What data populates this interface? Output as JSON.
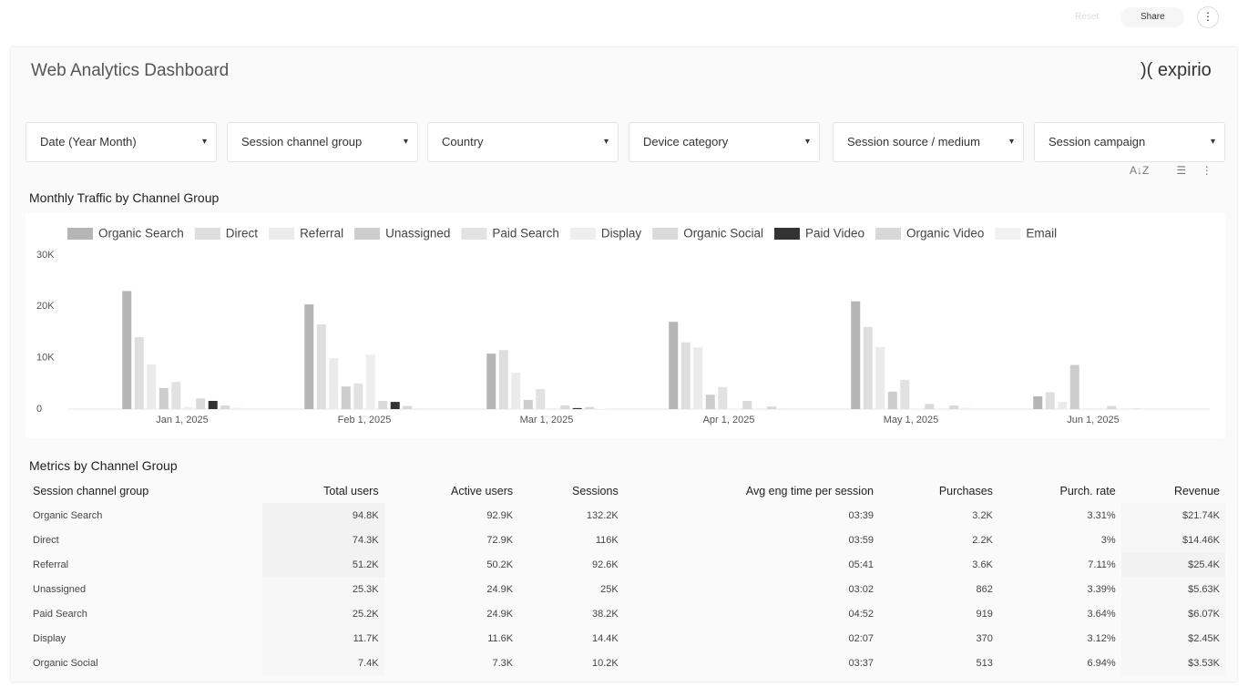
{
  "header": {
    "reset": "Reset",
    "share": "Share",
    "title": "Web Analytics Dashboard",
    "logo": "expirio"
  },
  "filters": [
    "Date (Year Month)",
    "Session channel group",
    "Country",
    "Device category",
    "Session source / medium",
    "Session campaign"
  ],
  "chart_data": {
    "type": "bar",
    "title": "Monthly Traffic by Channel Group",
    "categories": [
      "Jan 1, 2025",
      "Feb 1, 2025",
      "Mar 1, 2025",
      "Apr 1, 2025",
      "May 1, 2025",
      "Jun 1, 2025"
    ],
    "series": [
      {
        "name": "Organic Search",
        "color": "#b5b5b5",
        "values": [
          23000,
          20400,
          10800,
          17000,
          21000,
          2500
        ]
      },
      {
        "name": "Direct",
        "color": "#dedede",
        "values": [
          14000,
          16500,
          11500,
          13000,
          16000,
          3300
        ]
      },
      {
        "name": "Referral",
        "color": "#ebebeb",
        "values": [
          8700,
          9900,
          7100,
          12000,
          12100,
          1400
        ]
      },
      {
        "name": "Unassigned",
        "color": "#cdcdcd",
        "values": [
          4100,
          4400,
          1800,
          2800,
          3400,
          8600
        ]
      },
      {
        "name": "Paid Search",
        "color": "#e2e2e2",
        "values": [
          5300,
          5000,
          3900,
          4300,
          5700,
          100
        ]
      },
      {
        "name": "Display",
        "color": "#eeeeee",
        "values": [
          400,
          10600,
          200,
          100,
          100,
          0
        ]
      },
      {
        "name": "Organic Social",
        "color": "#dadada",
        "values": [
          2100,
          1600,
          700,
          1600,
          1000,
          600
        ]
      },
      {
        "name": "Paid Video",
        "color": "#333333",
        "values": [
          1600,
          1400,
          200,
          0,
          0,
          0
        ]
      },
      {
        "name": "Organic Video",
        "color": "#d8d8d8",
        "values": [
          700,
          600,
          400,
          500,
          700,
          100
        ]
      },
      {
        "name": "Email",
        "color": "#f1f1f1",
        "values": [
          300,
          200,
          100,
          200,
          300,
          0
        ]
      }
    ],
    "ylim": [
      0,
      30000
    ],
    "yticks": [
      0,
      {
        "value": 10000,
        "label": "10K"
      },
      {
        "value": 20000,
        "label": "20K"
      },
      {
        "value": 30000,
        "label": "30K"
      }
    ],
    "legend": "top"
  },
  "table": {
    "title": "Metrics by Channel Group",
    "columns": [
      "Session channel group",
      "Total users",
      "Active users",
      "Sessions",
      "Avg eng time per session",
      "Purchases",
      "Purch. rate",
      "Revenue"
    ],
    "rows": [
      [
        "Organic Search",
        "94.8K",
        "92.9K",
        "132.2K",
        "03:39",
        "3.2K",
        "3.31%",
        "$21.74K"
      ],
      [
        "Direct",
        "74.3K",
        "72.9K",
        "116K",
        "03:59",
        "2.2K",
        "3%",
        "$14.46K"
      ],
      [
        "Referral",
        "51.2K",
        "50.2K",
        "92.6K",
        "05:41",
        "3.6K",
        "7.11%",
        "$25.4K"
      ],
      [
        "Unassigned",
        "25.3K",
        "24.9K",
        "25K",
        "03:02",
        "862",
        "3.39%",
        "$5.63K"
      ],
      [
        "Paid Search",
        "25.2K",
        "24.9K",
        "38.2K",
        "04:52",
        "919",
        "3.64%",
        "$6.07K"
      ],
      [
        "Display",
        "11.7K",
        "11.6K",
        "14.4K",
        "02:07",
        "370",
        "3.12%",
        "$2.45K"
      ],
      [
        "Organic Social",
        "7.4K",
        "7.3K",
        "10.2K",
        "03:37",
        "513",
        "6.94%",
        "$3.53K"
      ]
    ]
  }
}
